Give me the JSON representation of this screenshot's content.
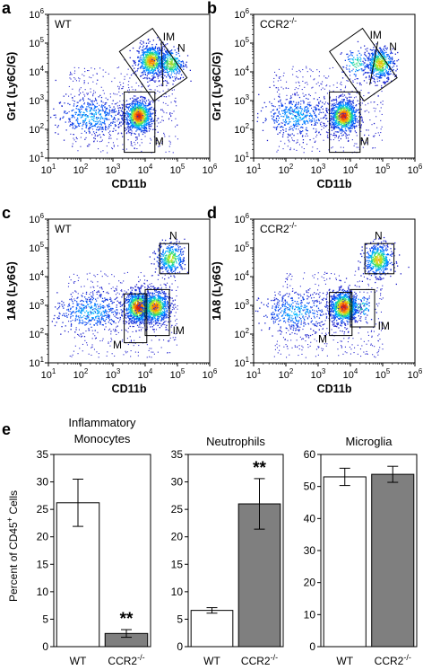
{
  "figure": {
    "panels": [
      {
        "letter": "a",
        "genotype": "WT",
        "ylabel": "Gr1 (Ly6C/G)",
        "xlabel": "CD11b",
        "gates": [
          "IM",
          "N",
          "M"
        ]
      },
      {
        "letter": "b",
        "genotype": "CCR2-/-",
        "ylabel": "Gr1 (Ly6C/G)",
        "xlabel": "CD11b",
        "gates": [
          "IM",
          "N",
          "M"
        ]
      },
      {
        "letter": "c",
        "genotype": "WT",
        "ylabel": "1A8 (Ly6G)",
        "xlabel": "CD11b",
        "gates": [
          "N",
          "M",
          "IM"
        ]
      },
      {
        "letter": "d",
        "genotype": "CCR2-/-",
        "ylabel": "1A8 (Ly6G)",
        "xlabel": "CD11b",
        "gates": [
          "N",
          "M",
          "IM"
        ]
      }
    ],
    "bar_panel_letter": "e",
    "bar_ylabel": "Percent of CD45+ Cells"
  },
  "chart_data": [
    {
      "type": "scatter",
      "panel": "a",
      "title": "",
      "xlabel": "CD11b",
      "ylabel": "Gr1 (Ly6C/G)",
      "x_scale": "log",
      "y_scale": "log",
      "xlim": [
        10,
        1000000
      ],
      "ylim": [
        10,
        1000000
      ],
      "x_ticks": [
        "10^1",
        "10^2",
        "10^3",
        "10^4",
        "10^5",
        "10^6"
      ],
      "y_ticks": [
        "10^1",
        "10^2",
        "10^3",
        "10^4",
        "10^5",
        "10^6"
      ],
      "annotation": "WT",
      "populations": [
        {
          "gate": "M",
          "center": [
            6000,
            300
          ],
          "relative_density": 1.0
        },
        {
          "gate": "IM",
          "center": [
            15000,
            25000
          ],
          "relative_density": 0.75
        },
        {
          "gate": "N",
          "center": [
            60000,
            20000
          ],
          "relative_density": 0.35
        },
        {
          "gate": "",
          "center": [
            200,
            300
          ],
          "relative_density": 0.45
        }
      ]
    },
    {
      "type": "scatter",
      "panel": "b",
      "title": "",
      "xlabel": "CD11b",
      "ylabel": "Gr1 (Ly6C/G)",
      "x_scale": "log",
      "y_scale": "log",
      "xlim": [
        10,
        1000000
      ],
      "ylim": [
        10,
        1000000
      ],
      "x_ticks": [
        "10^1",
        "10^2",
        "10^3",
        "10^4",
        "10^5",
        "10^6"
      ],
      "y_ticks": [
        "10^1",
        "10^2",
        "10^3",
        "10^4",
        "10^5",
        "10^6"
      ],
      "annotation": "CCR2-/-",
      "populations": [
        {
          "gate": "M",
          "center": [
            6000,
            300
          ],
          "relative_density": 1.0
        },
        {
          "gate": "IM",
          "center": [
            15000,
            20000
          ],
          "relative_density": 0.12
        },
        {
          "gate": "N",
          "center": [
            80000,
            20000
          ],
          "relative_density": 0.55
        },
        {
          "gate": "",
          "center": [
            200,
            300
          ],
          "relative_density": 0.45
        }
      ]
    },
    {
      "type": "scatter",
      "panel": "c",
      "title": "",
      "xlabel": "CD11b",
      "ylabel": "1A8 (Ly6G)",
      "x_scale": "log",
      "y_scale": "log",
      "xlim": [
        10,
        1000000
      ],
      "ylim": [
        10,
        1000000
      ],
      "x_ticks": [
        "10^1",
        "10^2",
        "10^3",
        "10^4",
        "10^5",
        "10^6"
      ],
      "y_ticks": [
        "10^1",
        "10^2",
        "10^3",
        "10^4",
        "10^5",
        "10^6"
      ],
      "annotation": "WT",
      "populations": [
        {
          "gate": "M",
          "center": [
            6000,
            900
          ],
          "relative_density": 1.0
        },
        {
          "gate": "IM",
          "center": [
            20000,
            900
          ],
          "relative_density": 0.8
        },
        {
          "gate": "N",
          "center": [
            60000,
            45000
          ],
          "relative_density": 0.4
        },
        {
          "gate": "",
          "center": [
            200,
            600
          ],
          "relative_density": 0.45
        }
      ]
    },
    {
      "type": "scatter",
      "panel": "d",
      "title": "",
      "xlabel": "CD11b",
      "ylabel": "1A8 (Ly6G)",
      "x_scale": "log",
      "y_scale": "log",
      "xlim": [
        10,
        1000000
      ],
      "ylim": [
        10,
        1000000
      ],
      "x_ticks": [
        "10^1",
        "10^2",
        "10^3",
        "10^4",
        "10^5",
        "10^6"
      ],
      "y_ticks": [
        "10^1",
        "10^2",
        "10^3",
        "10^4",
        "10^5",
        "10^6"
      ],
      "annotation": "CCR2-/-",
      "populations": [
        {
          "gate": "M",
          "center": [
            6000,
            900
          ],
          "relative_density": 1.0
        },
        {
          "gate": "IM",
          "center": [
            20000,
            900
          ],
          "relative_density": 0.08
        },
        {
          "gate": "N",
          "center": [
            70000,
            40000
          ],
          "relative_density": 0.55
        },
        {
          "gate": "",
          "center": [
            200,
            600
          ],
          "relative_density": 0.4
        }
      ]
    },
    {
      "type": "bar",
      "panel": "e",
      "title": "Inflammatory Monocytes",
      "ylabel": "Percent of CD45+ Cells",
      "categories": [
        "WT",
        "CCR2-/-"
      ],
      "values": [
        26.2,
        2.4
      ],
      "errors": [
        4.3,
        0.7
      ],
      "ylim": [
        0,
        35
      ],
      "y_ticks": [
        0,
        5,
        10,
        15,
        20,
        25,
        30,
        35
      ],
      "bar_colors": [
        "#ffffff",
        "#7f7f7f"
      ],
      "significance": [
        "",
        "**"
      ]
    },
    {
      "type": "bar",
      "panel": "e",
      "title": "Neutrophils",
      "ylabel": "",
      "categories": [
        "WT",
        "CCR2-/-"
      ],
      "values": [
        6.6,
        26.0
      ],
      "errors": [
        0.5,
        4.6
      ],
      "ylim": [
        0,
        35
      ],
      "y_ticks": [
        0,
        5,
        10,
        15,
        20,
        25,
        30,
        35
      ],
      "bar_colors": [
        "#ffffff",
        "#7f7f7f"
      ],
      "significance": [
        "",
        "**"
      ]
    },
    {
      "type": "bar",
      "panel": "e",
      "title": "Microglia",
      "ylabel": "",
      "categories": [
        "WT",
        "CCR2-/-"
      ],
      "values": [
        53.0,
        53.8
      ],
      "errors": [
        2.7,
        2.5
      ],
      "ylim": [
        0,
        60
      ],
      "y_ticks": [
        0,
        10,
        20,
        30,
        40,
        50,
        60
      ],
      "bar_colors": [
        "#ffffff",
        "#7f7f7f"
      ],
      "significance": [
        "",
        ""
      ]
    }
  ]
}
